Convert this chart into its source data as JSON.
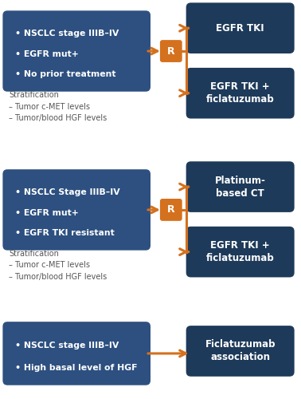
{
  "background_color": "#ffffff",
  "left_box_color": "#2d5080",
  "right_box_color": "#1e3a5a",
  "r_box_color": "#d4711e",
  "arrow_color": "#d4711e",
  "text_color_white": "#ffffff",
  "text_color_dark": "#555555",
  "panels": [
    {
      "left_box_lines": [
        "• NSCLC stage IIIB–IV",
        "• EGFR mut+",
        "• No prior treatment"
      ],
      "stratification_text": "Stratification\n– Tumor c-MET levels\n– Tumor/blood HGF levels",
      "right_top_text": "EGFR TKI",
      "right_bottom_text": "EGFR TKI +\nficlatuzumab",
      "has_R": true
    },
    {
      "left_box_lines": [
        "• NSCLC Stage IIIB–IV",
        "• EGFR mut+",
        "• EGFR TKI resistant"
      ],
      "stratification_text": "Stratification\n– Tumor c-MET levels\n– Tumor/blood HGF levels",
      "right_top_text": "Platinum-\nbased CT",
      "right_bottom_text": "EGFR TKI +\nficlatuzumab",
      "has_R": true
    },
    {
      "left_box_lines": [
        "• NSCLC stage IIIB–IV",
        "• High basal level of HGF"
      ],
      "stratification_text": "",
      "right_top_text": "Ficlatuzumab\nassociation",
      "right_bottom_text": "",
      "has_R": false
    }
  ]
}
